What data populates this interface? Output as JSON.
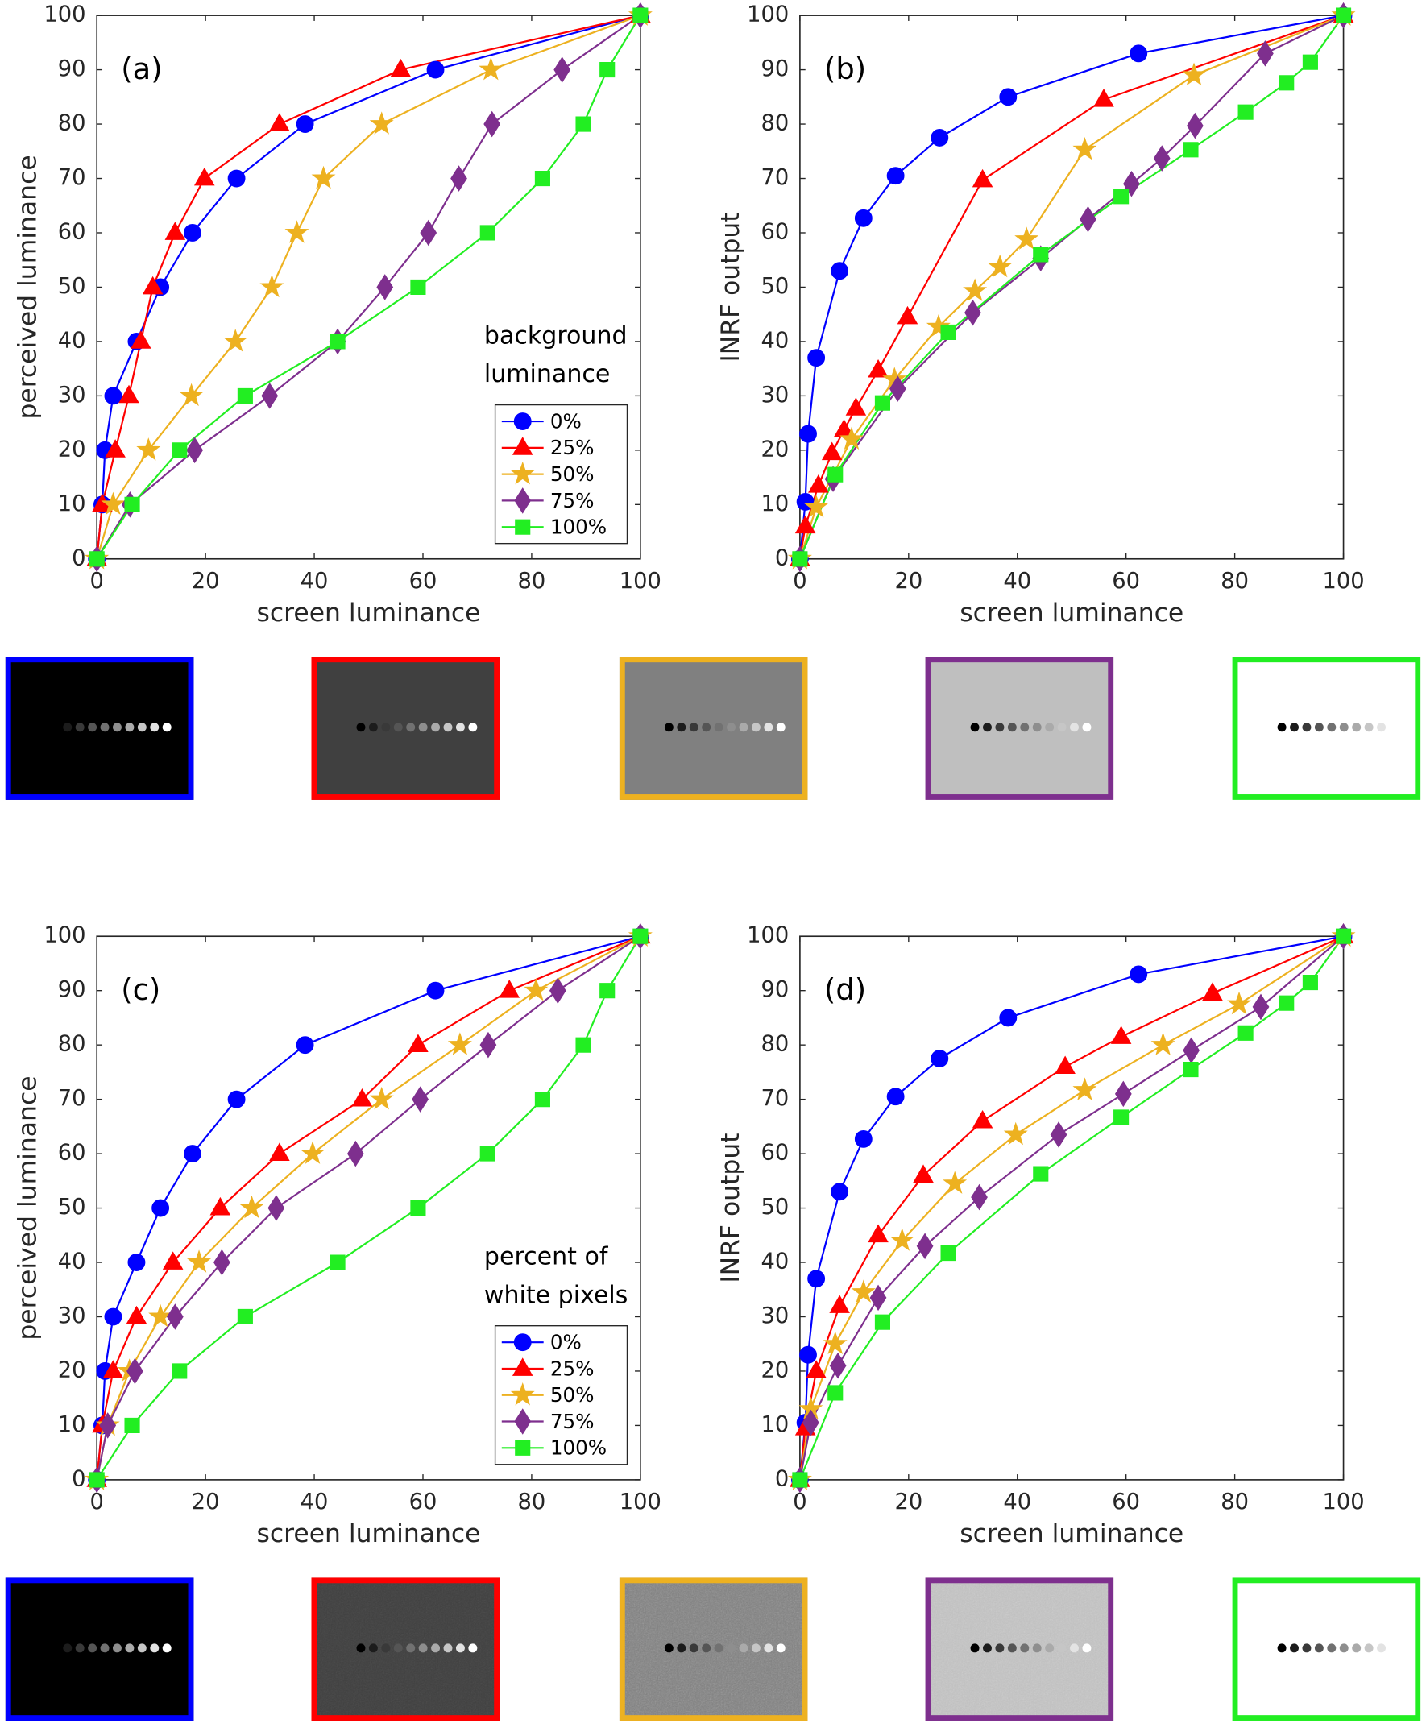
{
  "chart_data": [
    {
      "type": "line",
      "label": "(a)",
      "xlabel": "screen luminance",
      "ylabel": "perceived luminance",
      "xlim": [
        0,
        100
      ],
      "ylim": [
        0,
        100
      ],
      "xticks": [
        0,
        20,
        40,
        60,
        80,
        100
      ],
      "yticks": [
        0,
        10,
        20,
        30,
        40,
        50,
        60,
        70,
        80,
        90,
        100
      ],
      "legend_title": [
        "background",
        "luminance"
      ],
      "legend": "lower right",
      "series": [
        {
          "name": "0%",
          "color": "#0000ff",
          "marker": "circle",
          "x": [
            0,
            1,
            1.5,
            3,
            7.3,
            11.7,
            17.6,
            25.7,
            38.3,
            62.3,
            100
          ],
          "values": [
            0,
            10,
            20,
            30,
            40,
            50,
            60,
            70,
            80,
            90,
            100
          ]
        },
        {
          "name": "25%",
          "color": "#ff0000",
          "marker": "triangle",
          "x": [
            0,
            1,
            3.4,
            5.9,
            8.1,
            10.3,
            14.4,
            19.8,
            33.6,
            55.9,
            100
          ],
          "values": [
            0,
            10,
            20,
            30,
            40,
            50,
            60,
            70,
            80,
            90,
            100
          ]
        },
        {
          "name": "50%",
          "color": "#edb120",
          "marker": "star",
          "x": [
            0,
            3,
            9.5,
            17.4,
            25.5,
            32.2,
            36.8,
            41.7,
            52.4,
            72.5,
            100
          ],
          "values": [
            0,
            10,
            20,
            30,
            40,
            50,
            60,
            70,
            80,
            90,
            100
          ]
        },
        {
          "name": "75%",
          "color": "#7e2f8e",
          "marker": "diamond",
          "x": [
            0,
            6.1,
            18,
            31.8,
            44.3,
            53,
            61,
            66.6,
            72.7,
            85.6,
            100
          ],
          "values": [
            0,
            10,
            20,
            30,
            40,
            50,
            60,
            70,
            80,
            90,
            100
          ]
        },
        {
          "name": "100%",
          "color": "#22ee22",
          "marker": "square",
          "x": [
            0,
            6.5,
            15.2,
            27.3,
            44.3,
            59.1,
            71.9,
            82,
            89.5,
            93.9,
            100
          ],
          "values": [
            0,
            10,
            20,
            30,
            40,
            50,
            60,
            70,
            80,
            90,
            100
          ]
        }
      ]
    },
    {
      "type": "line",
      "label": "(b)",
      "xlabel": "screen luminance",
      "ylabel": "INRF output",
      "xlim": [
        0,
        100
      ],
      "ylim": [
        0,
        100
      ],
      "xticks": [
        0,
        20,
        40,
        60,
        80,
        100
      ],
      "yticks": [
        0,
        10,
        20,
        30,
        40,
        50,
        60,
        70,
        80,
        90,
        100
      ],
      "series": [
        {
          "color": "#0000ff",
          "marker": "circle",
          "x": [
            0,
            1,
            1.5,
            3,
            7.3,
            11.7,
            17.6,
            25.7,
            38.3,
            62.3,
            100
          ],
          "values": [
            0,
            10.5,
            23,
            37,
            53,
            62.7,
            70.5,
            77.5,
            85,
            93,
            100
          ]
        },
        {
          "color": "#ff0000",
          "marker": "triangle",
          "x": [
            0,
            1,
            3.4,
            5.9,
            8.1,
            10.3,
            14.4,
            19.8,
            33.6,
            55.9,
            100
          ],
          "values": [
            0,
            6,
            13.5,
            19.5,
            23.7,
            27.7,
            34.7,
            44.5,
            69.7,
            84.5,
            100
          ]
        },
        {
          "color": "#edb120",
          "marker": "star",
          "x": [
            0,
            3,
            9.5,
            17.4,
            25.5,
            32.2,
            36.8,
            41.7,
            52.4,
            72.5,
            100
          ],
          "values": [
            0,
            9.5,
            22,
            33,
            42.7,
            49.3,
            53.7,
            58.8,
            75.3,
            89,
            100
          ]
        },
        {
          "color": "#7e2f8e",
          "marker": "diamond",
          "x": [
            0,
            6.1,
            18,
            31.8,
            44.3,
            53,
            61,
            66.6,
            72.7,
            85.6,
            100
          ],
          "values": [
            0,
            14.7,
            31.3,
            45.3,
            55.3,
            62.5,
            69,
            73.7,
            79.7,
            93,
            100
          ]
        },
        {
          "color": "#22ee22",
          "marker": "square",
          "x": [
            0,
            6.5,
            15.2,
            27.3,
            44.3,
            59.1,
            71.9,
            82,
            89.5,
            93.9,
            100
          ],
          "values": [
            0,
            15.5,
            28.7,
            41.7,
            56,
            66.7,
            75.3,
            82.2,
            87.6,
            91.4,
            100
          ]
        }
      ]
    },
    {
      "type": "line",
      "label": "(c)",
      "xlabel": "screen luminance",
      "ylabel": "perceived luminance",
      "xlim": [
        0,
        100
      ],
      "ylim": [
        0,
        100
      ],
      "xticks": [
        0,
        20,
        40,
        60,
        80,
        100
      ],
      "yticks": [
        0,
        10,
        20,
        30,
        40,
        50,
        60,
        70,
        80,
        90,
        100
      ],
      "legend_title": [
        "percent of",
        "white pixels"
      ],
      "legend": "lower right",
      "series": [
        {
          "name": "0%",
          "color": "#0000ff",
          "marker": "circle",
          "x": [
            0,
            1,
            1.5,
            3,
            7.3,
            11.7,
            17.6,
            25.7,
            38.3,
            62.3,
            100
          ],
          "values": [
            0,
            10,
            20,
            30,
            40,
            50,
            60,
            70,
            80,
            90,
            100
          ]
        },
        {
          "name": "25%",
          "color": "#ff0000",
          "marker": "triangle",
          "x": [
            0,
            1,
            3,
            7.3,
            14,
            22.7,
            33.6,
            48.8,
            59.1,
            75.9,
            100
          ],
          "values": [
            0,
            10,
            20,
            30,
            40,
            50,
            60,
            70,
            80,
            90,
            100
          ]
        },
        {
          "name": "50%",
          "color": "#edb120",
          "marker": "star",
          "x": [
            0,
            2,
            6,
            11.7,
            18.8,
            28.5,
            39.7,
            52.4,
            66.8,
            80.8,
            100
          ],
          "values": [
            0,
            10,
            20,
            30,
            40,
            50,
            60,
            70,
            80,
            90,
            100
          ]
        },
        {
          "name": "75%",
          "color": "#7e2f8e",
          "marker": "diamond",
          "x": [
            0,
            2,
            7,
            14.4,
            23,
            33,
            47.6,
            59.5,
            72,
            84.8,
            100
          ],
          "values": [
            0,
            10,
            20,
            30,
            40,
            50,
            60,
            70,
            80,
            90,
            100
          ]
        },
        {
          "name": "100%",
          "color": "#22ee22",
          "marker": "square",
          "x": [
            0,
            6.5,
            15.2,
            27.3,
            44.3,
            59.1,
            71.9,
            82,
            89.5,
            93.9,
            100
          ],
          "values": [
            0,
            10,
            20,
            30,
            40,
            50,
            60,
            70,
            80,
            90,
            100
          ]
        }
      ]
    },
    {
      "type": "line",
      "label": "(d)",
      "xlabel": "screen luminance",
      "ylabel": "INRF output",
      "xlim": [
        0,
        100
      ],
      "ylim": [
        0,
        100
      ],
      "xticks": [
        0,
        20,
        40,
        60,
        80,
        100
      ],
      "yticks": [
        0,
        10,
        20,
        30,
        40,
        50,
        60,
        70,
        80,
        90,
        100
      ],
      "series": [
        {
          "color": "#0000ff",
          "marker": "circle",
          "x": [
            0,
            1,
            1.5,
            3,
            7.3,
            11.7,
            17.6,
            25.7,
            38.3,
            62.3,
            100
          ],
          "values": [
            0,
            10.5,
            23,
            37,
            53,
            62.7,
            70.5,
            77.5,
            85,
            93,
            100
          ]
        },
        {
          "color": "#ff0000",
          "marker": "triangle",
          "x": [
            0,
            1,
            3,
            7.3,
            14.4,
            22.7,
            33.6,
            48.8,
            59.1,
            75.9,
            100
          ],
          "values": [
            0,
            9.5,
            20,
            32,
            45,
            56,
            66,
            76,
            81.5,
            89.5,
            100
          ]
        },
        {
          "color": "#edb120",
          "marker": "star",
          "x": [
            0,
            2,
            6.5,
            11.7,
            18.8,
            28.5,
            39.7,
            52.4,
            66.8,
            80.8,
            100
          ],
          "values": [
            0,
            13,
            25,
            34.5,
            44,
            54.5,
            63.5,
            71.7,
            80,
            87.5,
            100
          ]
        },
        {
          "color": "#7e2f8e",
          "marker": "diamond",
          "x": [
            0,
            2,
            7,
            14.4,
            23,
            33,
            47.6,
            59.5,
            72,
            84.8,
            100
          ],
          "values": [
            0,
            10.5,
            21,
            33.5,
            43,
            52,
            63.5,
            71,
            79,
            87,
            100
          ]
        },
        {
          "color": "#22ee22",
          "marker": "square",
          "x": [
            0,
            6.5,
            15.2,
            27.3,
            44.3,
            59.1,
            71.9,
            82,
            89.5,
            93.9,
            100
          ],
          "values": [
            0,
            16,
            29,
            41.7,
            56.3,
            66.7,
            75.5,
            82.2,
            87.7,
            91.5,
            100
          ]
        }
      ]
    }
  ]
}
